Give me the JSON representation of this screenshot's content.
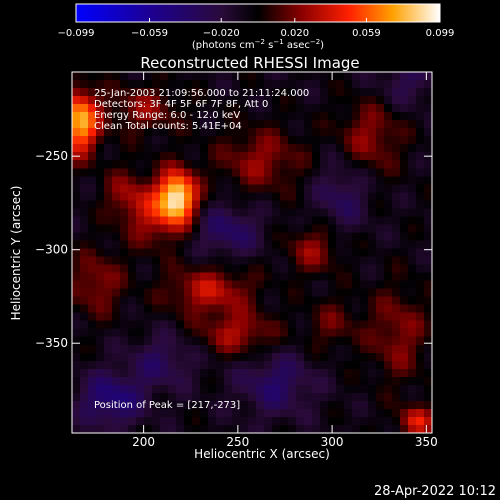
{
  "chart_data": {
    "type": "heatmap",
    "title": "Reconstructed RHESSI Image",
    "xlabel": "Heliocentric X (arcsec)",
    "ylabel": "Heliocentric Y (arcsec)",
    "xlim": [
      162,
      353
    ],
    "ylim": [
      -398,
      -205
    ],
    "x_ticks": [
      200,
      250,
      300,
      350
    ],
    "y_ticks": [
      -250,
      -300,
      -350
    ],
    "colorbar": {
      "label_prefix": "(photons cm",
      "label_exp1": "−2",
      "label_mid": " s",
      "label_exp2": "−1",
      "label_mid2": " asec",
      "label_exp3": "−2",
      "label_suffix": ")",
      "ticks": [
        "−0.099",
        "−0.059",
        "−0.020",
        "0.020",
        "0.059",
        "0.099"
      ],
      "range": [
        -0.099,
        0.099
      ]
    },
    "annotations": [
      "25-Jan-2003 21:09:56.000 to 21:11:24.000",
      "Detectors: 3F 4F 5F 6F 7F 8F, Att 0",
      "Energy Range: 6.0 - 12.0 keV",
      "Clean    Total counts: 5.41E+04"
    ],
    "peak_label": "Position of Peak = [217,-273]",
    "peak": [
      217,
      -273
    ],
    "peak_value": 0.099,
    "sources": [
      {
        "x": 218,
        "y": -272,
        "amp": 0.098,
        "sx": 7,
        "sy": 10
      },
      {
        "x": 166,
        "y": -232,
        "amp": 0.085,
        "sx": 7,
        "sy": 12
      },
      {
        "x": 205,
        "y": -282,
        "amp": 0.035,
        "sx": 10,
        "sy": 12
      },
      {
        "x": 235,
        "y": -322,
        "amp": 0.04,
        "sx": 16,
        "sy": 9
      },
      {
        "x": 250,
        "y": -345,
        "amp": 0.035,
        "sx": 14,
        "sy": 8
      },
      {
        "x": 290,
        "y": -300,
        "amp": 0.03,
        "sx": 10,
        "sy": 9
      },
      {
        "x": 262,
        "y": -252,
        "amp": 0.03,
        "sx": 16,
        "sy": 12
      },
      {
        "x": 200,
        "y": -225,
        "amp": 0.028,
        "sx": 14,
        "sy": 9
      },
      {
        "x": 320,
        "y": -240,
        "amp": 0.03,
        "sx": 12,
        "sy": 14
      },
      {
        "x": 335,
        "y": -345,
        "amp": 0.028,
        "sx": 11,
        "sy": 18
      },
      {
        "x": 345,
        "y": -392,
        "amp": 0.045,
        "sx": 7,
        "sy": 6
      },
      {
        "x": 175,
        "y": -318,
        "amp": 0.03,
        "sx": 10,
        "sy": 12
      },
      {
        "x": 190,
        "y": -270,
        "amp": 0.026,
        "sx": 8,
        "sy": 10
      },
      {
        "x": 300,
        "y": -340,
        "amp": 0.02,
        "sx": 10,
        "sy": 10
      },
      {
        "x": 183,
        "y": -380,
        "amp": -0.04,
        "sx": 12,
        "sy": 10
      },
      {
        "x": 270,
        "y": -372,
        "amp": -0.03,
        "sx": 14,
        "sy": 12
      },
      {
        "x": 245,
        "y": -290,
        "amp": -0.03,
        "sx": 12,
        "sy": 10
      },
      {
        "x": 305,
        "y": -270,
        "amp": -0.025,
        "sx": 10,
        "sy": 14
      },
      {
        "x": 210,
        "y": -360,
        "amp": -0.025,
        "sx": 12,
        "sy": 10
      },
      {
        "x": 340,
        "y": -210,
        "amp": -0.02,
        "sx": 12,
        "sy": 10
      }
    ]
  },
  "footer": {
    "timestamp": "28-Apr-2022 10:12"
  }
}
